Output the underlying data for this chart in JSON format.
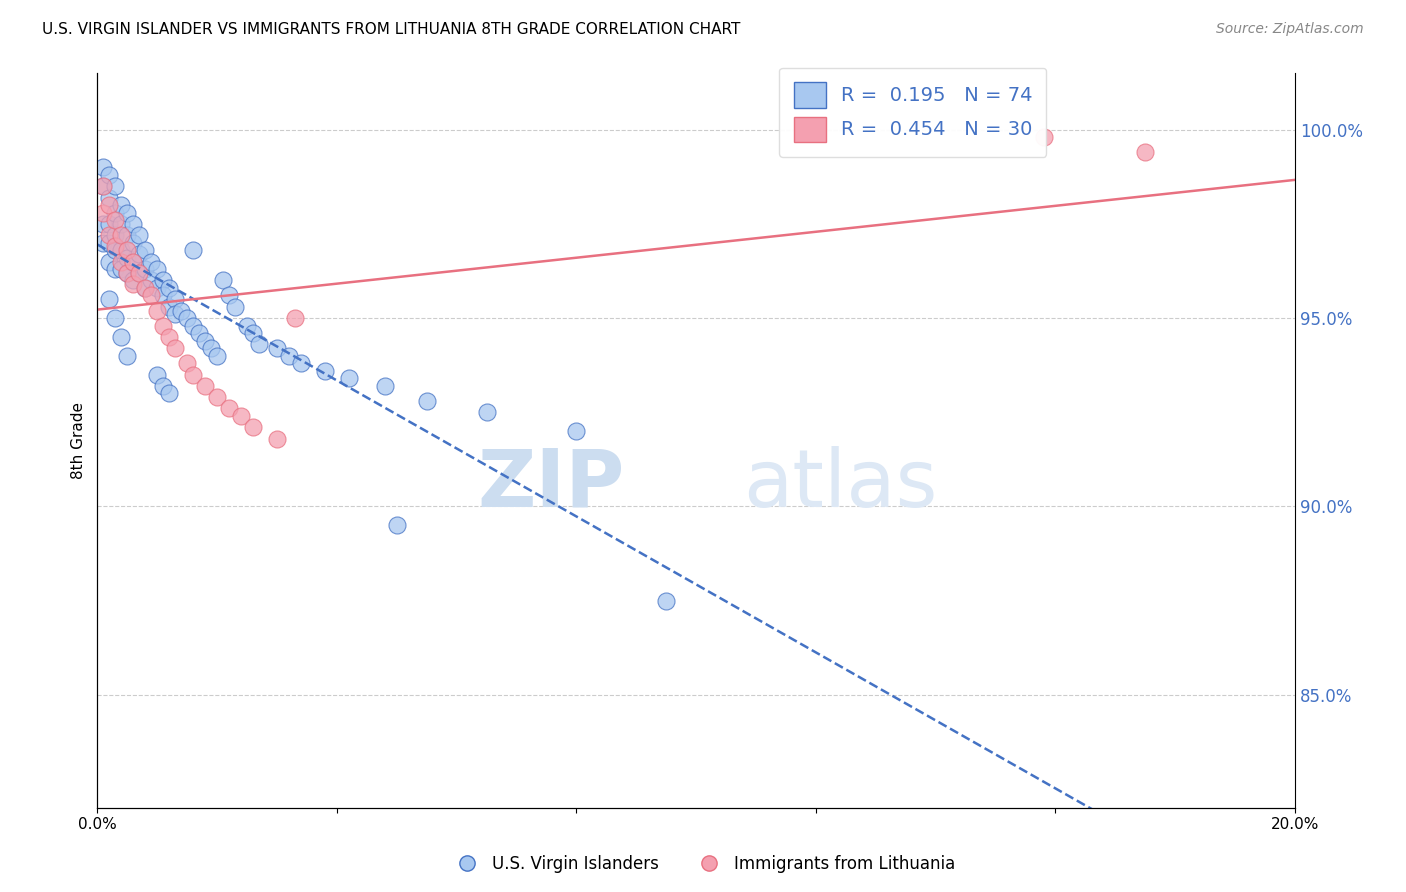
{
  "title": "U.S. VIRGIN ISLANDER VS IMMIGRANTS FROM LITHUANIA 8TH GRADE CORRELATION CHART",
  "source": "Source: ZipAtlas.com",
  "ylabel": "8th Grade",
  "ytick_labels": [
    "85.0%",
    "90.0%",
    "95.0%",
    "100.0%"
  ],
  "ytick_values": [
    0.85,
    0.9,
    0.95,
    1.0
  ],
  "xlim": [
    0.0,
    0.2
  ],
  "ylim": [
    0.82,
    1.015
  ],
  "R_blue": 0.195,
  "N_blue": 74,
  "R_pink": 0.454,
  "N_pink": 30,
  "legend_label_blue": "U.S. Virgin Islanders",
  "legend_label_pink": "Immigrants from Lithuania",
  "color_blue": "#A8C8F0",
  "color_pink": "#F4A0B0",
  "line_color_blue": "#4472C4",
  "line_color_pink": "#E87080",
  "text_color_blue": "#4472C4",
  "blue_x": [
    0.001,
    0.001,
    0.001,
    0.001,
    0.002,
    0.002,
    0.002,
    0.002,
    0.002,
    0.003,
    0.003,
    0.003,
    0.003,
    0.003,
    0.004,
    0.004,
    0.004,
    0.004,
    0.005,
    0.005,
    0.005,
    0.005,
    0.006,
    0.006,
    0.006,
    0.006,
    0.007,
    0.007,
    0.007,
    0.008,
    0.008,
    0.008,
    0.009,
    0.009,
    0.01,
    0.01,
    0.011,
    0.011,
    0.012,
    0.012,
    0.013,
    0.013,
    0.014,
    0.015,
    0.016,
    0.016,
    0.017,
    0.018,
    0.019,
    0.02,
    0.021,
    0.022,
    0.023,
    0.025,
    0.026,
    0.027,
    0.03,
    0.032,
    0.034,
    0.038,
    0.042,
    0.048,
    0.055,
    0.065,
    0.08,
    0.01,
    0.011,
    0.012,
    0.002,
    0.003,
    0.004,
    0.005,
    0.05,
    0.095
  ],
  "blue_y": [
    0.99,
    0.985,
    0.975,
    0.97,
    0.988,
    0.982,
    0.975,
    0.97,
    0.965,
    0.985,
    0.978,
    0.972,
    0.968,
    0.963,
    0.98,
    0.975,
    0.968,
    0.963,
    0.978,
    0.972,
    0.966,
    0.962,
    0.975,
    0.97,
    0.965,
    0.96,
    0.972,
    0.967,
    0.962,
    0.968,
    0.963,
    0.958,
    0.965,
    0.96,
    0.963,
    0.958,
    0.96,
    0.956,
    0.958,
    0.953,
    0.955,
    0.951,
    0.952,
    0.95,
    0.968,
    0.948,
    0.946,
    0.944,
    0.942,
    0.94,
    0.96,
    0.956,
    0.953,
    0.948,
    0.946,
    0.943,
    0.942,
    0.94,
    0.938,
    0.936,
    0.934,
    0.932,
    0.928,
    0.925,
    0.92,
    0.935,
    0.932,
    0.93,
    0.955,
    0.95,
    0.945,
    0.94,
    0.895,
    0.875
  ],
  "pink_x": [
    0.001,
    0.001,
    0.002,
    0.002,
    0.003,
    0.003,
    0.004,
    0.004,
    0.005,
    0.005,
    0.006,
    0.006,
    0.007,
    0.008,
    0.009,
    0.01,
    0.011,
    0.012,
    0.013,
    0.015,
    0.016,
    0.018,
    0.02,
    0.022,
    0.024,
    0.026,
    0.03,
    0.033,
    0.158,
    0.175
  ],
  "pink_y": [
    0.985,
    0.978,
    0.98,
    0.972,
    0.976,
    0.969,
    0.972,
    0.965,
    0.968,
    0.962,
    0.965,
    0.959,
    0.962,
    0.958,
    0.956,
    0.952,
    0.948,
    0.945,
    0.942,
    0.938,
    0.935,
    0.932,
    0.929,
    0.926,
    0.924,
    0.921,
    0.918,
    0.95,
    0.998,
    0.994
  ]
}
